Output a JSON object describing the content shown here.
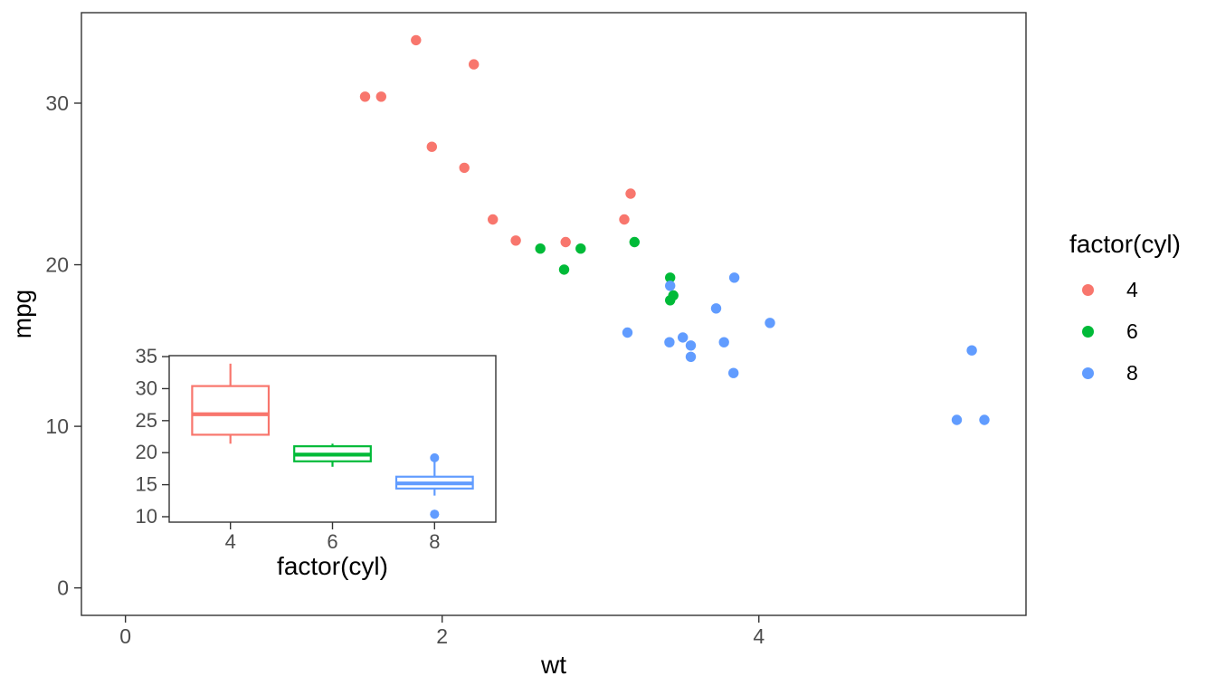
{
  "figure": {
    "background": "#FFFFFF",
    "panel_border_color": "#333333",
    "tick_color": "#333333",
    "tick_text_color": "#4D4D4D",
    "axis_title_color": "#000000"
  },
  "legend": {
    "title": "factor(cyl)",
    "items": [
      {
        "label": "4",
        "color": "#F8766D"
      },
      {
        "label": "6",
        "color": "#00BA38"
      },
      {
        "label": "8",
        "color": "#619CFF"
      }
    ]
  },
  "chart_data": [
    {
      "id": "main-scatter",
      "type": "scatter",
      "title": "",
      "xlabel": "wt",
      "ylabel": "mpg",
      "xlim": [
        -0.278,
        5.687
      ],
      "ylim": [
        -1.7,
        35.6
      ],
      "xticks": [
        0,
        2,
        4
      ],
      "yticks": [
        0,
        10,
        20,
        30
      ],
      "grid": false,
      "legend_position": "right",
      "legend_title": "factor(cyl)",
      "series": [
        {
          "name": "4",
          "color": "#F8766D",
          "points": [
            [
              2.32,
              22.8
            ],
            [
              3.19,
              24.4
            ],
            [
              3.15,
              22.8
            ],
            [
              2.2,
              32.4
            ],
            [
              1.615,
              30.4
            ],
            [
              1.835,
              33.9
            ],
            [
              2.465,
              21.5
            ],
            [
              1.935,
              27.3
            ],
            [
              2.14,
              26.0
            ],
            [
              1.513,
              30.4
            ],
            [
              2.78,
              21.4
            ]
          ]
        },
        {
          "name": "6",
          "color": "#00BA38",
          "points": [
            [
              2.62,
              21.0
            ],
            [
              2.875,
              21.0
            ],
            [
              3.215,
              21.4
            ],
            [
              3.46,
              18.1
            ],
            [
              3.44,
              19.2
            ],
            [
              3.44,
              17.8
            ],
            [
              2.77,
              19.7
            ]
          ]
        },
        {
          "name": "8",
          "color": "#619CFF",
          "points": [
            [
              3.44,
              18.7
            ],
            [
              3.57,
              14.3
            ],
            [
              4.07,
              16.4
            ],
            [
              3.73,
              17.3
            ],
            [
              3.78,
              15.2
            ],
            [
              5.25,
              10.4
            ],
            [
              5.424,
              10.4
            ],
            [
              5.345,
              14.7
            ],
            [
              3.52,
              15.5
            ],
            [
              3.435,
              15.2
            ],
            [
              3.84,
              13.3
            ],
            [
              3.845,
              19.2
            ],
            [
              3.17,
              15.8
            ],
            [
              3.57,
              15.0
            ]
          ]
        }
      ]
    },
    {
      "id": "inset-boxplot",
      "type": "boxplot",
      "title": "",
      "xlabel": "factor(cyl)",
      "ylabel": "",
      "categories": [
        "4",
        "6",
        "8"
      ],
      "yticks": [
        10,
        15,
        20,
        25,
        30,
        35
      ],
      "ylim": [
        9.15,
        35.15
      ],
      "grid": false,
      "boxes": [
        {
          "category": "4",
          "color": "#F8766D",
          "whisker_low": 21.4,
          "q1": 22.8,
          "median": 26.0,
          "q3": 30.4,
          "whisker_high": 33.9,
          "outliers": []
        },
        {
          "category": "6",
          "color": "#00BA38",
          "whisker_low": 17.8,
          "q1": 18.65,
          "median": 19.7,
          "q3": 21.0,
          "whisker_high": 21.4,
          "outliers": []
        },
        {
          "category": "8",
          "color": "#619CFF",
          "whisker_low": 13.3,
          "q1": 14.4,
          "median": 15.2,
          "q3": 16.25,
          "whisker_high": 18.7,
          "outliers": [
            19.2,
            10.4,
            10.4
          ]
        }
      ]
    }
  ]
}
